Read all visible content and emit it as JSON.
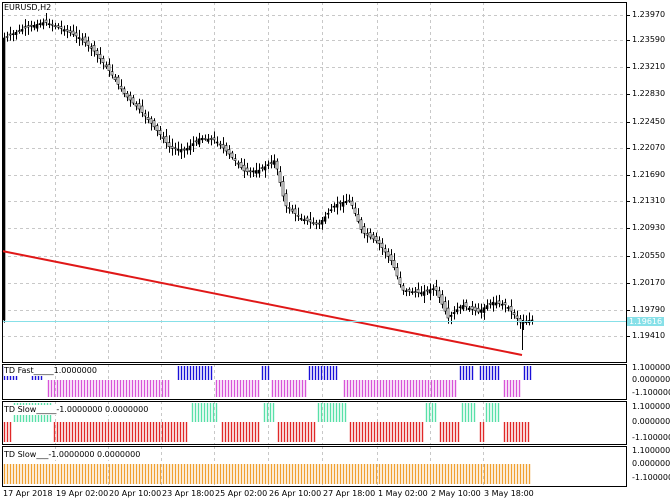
{
  "chart": {
    "symbol_label": "EURUSD,H2",
    "price_axis_labels": [
      "1.23970",
      "1.23590",
      "1.23210",
      "1.22830",
      "1.22450",
      "1.22070",
      "1.21690",
      "1.21310",
      "1.20930",
      "1.20550",
      "1.20170",
      "1.19790",
      "1.19410"
    ],
    "current_price_label": "1.19616",
    "time_axis_labels": [
      "17 Apr 2018",
      "19 Apr 02:00",
      "20 Apr 10:00",
      "23 Apr 18:00",
      "25 Apr 02:00",
      "26 Apr 10:00",
      "27 Apr 18:00",
      "1 May 02:00",
      "2 May 10:00",
      "3 May 18:00"
    ],
    "colors": {
      "grid": "#c8c8c8",
      "trendline": "#e01818",
      "bid_line": "#87e0e8",
      "candles": "#000000",
      "td_fast_up": "#1a10d8",
      "td_fast_down": "#d854d8",
      "td_slow_up": "#58e0a8",
      "td_slow_down": "#e02828",
      "td_slow2": "#f0a030"
    }
  },
  "indicators": [
    {
      "label": "TD Fast_____1.0000000",
      "axis_labels": [
        "1.1000000",
        "0.0000000",
        "-1.1000000"
      ]
    },
    {
      "label": "TD Slow_____-1.0000000 0.0000000",
      "axis_labels": [
        "1.1000000",
        "0.0000000",
        "-1.1000000"
      ]
    },
    {
      "label": "TD Slow___-1.0000000 0.0000000",
      "axis_labels": [
        "1.1000000",
        "0.0000000",
        "-1.1000000"
      ]
    }
  ]
}
